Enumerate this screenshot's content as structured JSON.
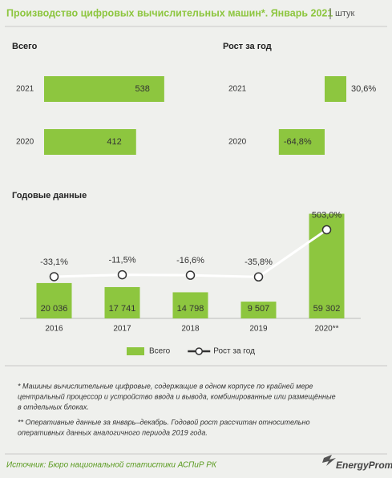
{
  "header": {
    "title": "Производство цифровых вычислительных машин*. Январь 2021",
    "unit": "штук"
  },
  "chart_data": [
    {
      "type": "hbar",
      "title": "Всего",
      "categories": [
        "2021",
        "2020"
      ],
      "values": [
        538,
        412
      ],
      "color": "#8dc63f",
      "xlim": [
        0,
        700
      ]
    },
    {
      "type": "hbar",
      "title": "Рост за год",
      "categories": [
        "2021",
        "2020"
      ],
      "values": [
        30.6,
        -64.8
      ],
      "value_labels": [
        "30,6%",
        "-64,8%"
      ],
      "color": "#8dc63f",
      "xlim": [
        -85,
        85
      ]
    },
    {
      "type": "combo",
      "title": "Годовые данные",
      "categories": [
        "2016",
        "2017",
        "2018",
        "2019",
        "2020**"
      ],
      "series": [
        {
          "name": "Всего",
          "type": "bar",
          "color": "#8dc63f",
          "values": [
            20036,
            17741,
            14798,
            9507,
            59302
          ],
          "value_labels": [
            "20 036",
            "17 741",
            "14 798",
            "9 507",
            "59 302"
          ]
        },
        {
          "name": "Рост за год",
          "type": "line",
          "axis": "y2",
          "color": "#ffffff",
          "values": [
            -33.1,
            -11.5,
            -16.6,
            -35.8,
            503.0
          ],
          "value_labels": [
            "-33,1%",
            "-11,5%",
            "-16,6%",
            "-35,8%",
            "503,0%"
          ]
        }
      ],
      "ylim": [
        0,
        60000
      ],
      "y2lim": [
        -510,
        700
      ]
    }
  ],
  "footnotes": [
    [
      "* Машины вычислительные цифровые, содержащие в одном корпусе по крайней мере",
      "центральный процессор и устройство ввода и вывода, комбинированные или размещённые",
      "в отдельных блоках."
    ],
    [
      "** Оперативные данные за январь–декабрь. Годовой рост рассчитан относительно",
      "оперативных данных аналогичного периода 2019 года."
    ]
  ],
  "source": "Источник: Бюро национальной  статистики АСПиР РК",
  "logo": "EnergyProm"
}
